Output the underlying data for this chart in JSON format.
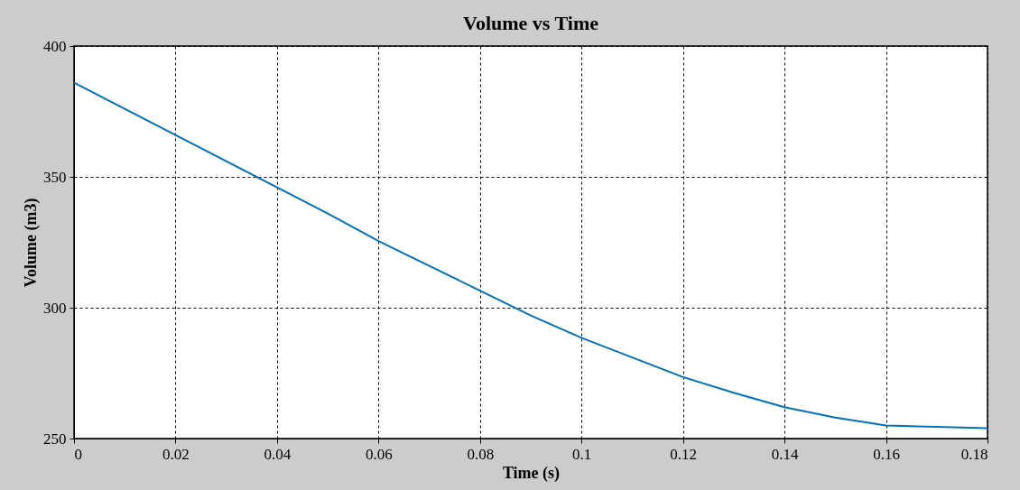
{
  "chart_data": {
    "type": "line",
    "title": "Volume vs Time",
    "xlabel": "Time (s)",
    "ylabel": "Volume (m3)",
    "x": [
      0,
      0.01,
      0.02,
      0.03,
      0.04,
      0.05,
      0.06,
      0.07,
      0.08,
      0.09,
      0.1,
      0.11,
      0.12,
      0.13,
      0.14,
      0.15,
      0.16,
      0.17,
      0.18
    ],
    "series": [
      {
        "color": "#0072bd",
        "values": [
          386,
          376,
          366,
          356,
          346,
          336,
          325.5,
          316,
          306.5,
          297,
          288.5,
          281,
          273.5,
          267.5,
          262,
          258,
          255,
          254.5,
          254
        ]
      }
    ],
    "xlim": [
      0,
      0.18
    ],
    "ylim": [
      250,
      400
    ],
    "xticks": [
      0,
      0.02,
      0.04,
      0.06,
      0.08,
      0.1,
      0.12,
      0.14,
      0.16,
      0.18
    ],
    "yticks": [
      250,
      300,
      350,
      400
    ],
    "grid": true,
    "line_style": "solid"
  }
}
